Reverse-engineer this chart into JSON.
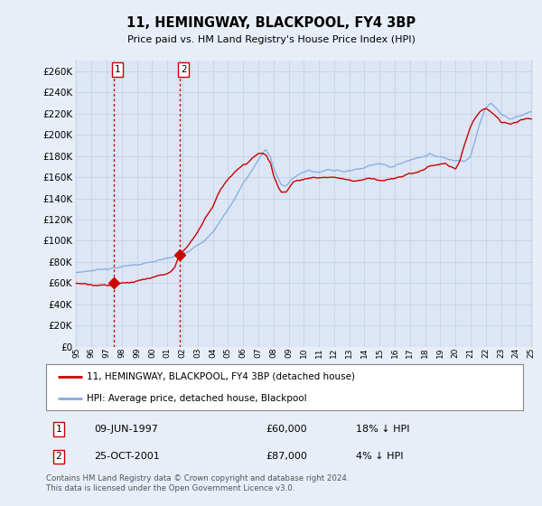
{
  "title": "11, HEMINGWAY, BLACKPOOL, FY4 3BP",
  "subtitle": "Price paid vs. HM Land Registry's House Price Index (HPI)",
  "background_color": "#e8eef7",
  "plot_bg_color": "#dce6f5",
  "grid_color": "#c8d4e8",
  "ylim": [
    0,
    270000
  ],
  "yticks": [
    0,
    20000,
    40000,
    60000,
    80000,
    100000,
    120000,
    140000,
    160000,
    180000,
    200000,
    220000,
    240000,
    260000
  ],
  "sale1_price": 60000,
  "sale1_x": 1997.45,
  "sale2_price": 87000,
  "sale2_x": 2001.8,
  "sale1_label": "1",
  "sale2_label": "2",
  "sale_color": "#cc0000",
  "legend_line1_color": "#cc0000",
  "legend_line2_color": "#88aadd",
  "legend_text1": "11, HEMINGWAY, BLACKPOOL, FY4 3BP (detached house)",
  "legend_text2": "HPI: Average price, detached house, Blackpool",
  "table_row1": [
    "1",
    "09-JUN-1997",
    "£60,000",
    "18% ↓ HPI"
  ],
  "table_row2": [
    "2",
    "25-OCT-2001",
    "£87,000",
    "4% ↓ HPI"
  ],
  "footer": "Contains HM Land Registry data © Crown copyright and database right 2024.\nThis data is licensed under the Open Government Licence v3.0.",
  "xtick_years": [
    1995,
    1996,
    1997,
    1998,
    1999,
    2000,
    2001,
    2002,
    2003,
    2004,
    2005,
    2006,
    2007,
    2008,
    2009,
    2010,
    2011,
    2012,
    2013,
    2014,
    2015,
    2016,
    2017,
    2018,
    2019,
    2020,
    2021,
    2022,
    2023,
    2024,
    2025
  ],
  "hpi_key_x": [
    1995.0,
    1995.5,
    1996.0,
    1996.5,
    1997.0,
    1997.5,
    1998.0,
    1998.5,
    1999.0,
    1999.5,
    2000.0,
    2000.5,
    2001.0,
    2001.5,
    2002.0,
    2002.5,
    2003.0,
    2003.5,
    2004.0,
    2004.5,
    2005.0,
    2005.5,
    2006.0,
    2006.5,
    2007.0,
    2007.3,
    2007.5,
    2007.8,
    2008.0,
    2008.3,
    2008.5,
    2008.8,
    2009.0,
    2009.3,
    2009.6,
    2010.0,
    2010.3,
    2010.6,
    2011.0,
    2011.3,
    2011.6,
    2012.0,
    2012.3,
    2012.6,
    2013.0,
    2013.3,
    2013.6,
    2014.0,
    2014.3,
    2014.6,
    2015.0,
    2015.3,
    2015.6,
    2016.0,
    2016.3,
    2016.6,
    2017.0,
    2017.3,
    2017.6,
    2018.0,
    2018.3,
    2018.5,
    2018.8,
    2019.0,
    2019.3,
    2019.6,
    2020.0,
    2020.3,
    2020.6,
    2021.0,
    2021.3,
    2021.6,
    2022.0,
    2022.3,
    2022.5,
    2022.8,
    2023.0,
    2023.3,
    2023.6,
    2024.0,
    2024.3,
    2024.6,
    2025.0
  ],
  "hpi_key_y": [
    70000,
    71000,
    72000,
    73000,
    74000,
    75000,
    76000,
    77000,
    78000,
    79000,
    80000,
    81000,
    82000,
    83500,
    85000,
    88000,
    93000,
    99000,
    108000,
    118000,
    128000,
    140000,
    153000,
    163000,
    175000,
    182000,
    185000,
    178000,
    168000,
    158000,
    152000,
    150000,
    153000,
    157000,
    160000,
    163000,
    165000,
    163000,
    162000,
    163000,
    164000,
    164000,
    165000,
    163000,
    163000,
    164000,
    165000,
    166000,
    168000,
    169000,
    170000,
    170000,
    168000,
    168000,
    170000,
    172000,
    174000,
    176000,
    177000,
    178000,
    182000,
    180000,
    179000,
    178000,
    177000,
    175000,
    174000,
    175000,
    175000,
    180000,
    195000,
    210000,
    225000,
    230000,
    228000,
    224000,
    220000,
    218000,
    215000,
    217000,
    218000,
    220000,
    222000
  ],
  "pp_key_x": [
    1995.0,
    1995.5,
    1996.0,
    1996.5,
    1997.0,
    1997.45,
    1997.7,
    1998.0,
    1998.5,
    1999.0,
    1999.5,
    2000.0,
    2000.5,
    2001.0,
    2001.5,
    2001.8,
    2002.0,
    2002.3,
    2002.6,
    2003.0,
    2003.3,
    2003.6,
    2004.0,
    2004.3,
    2004.6,
    2005.0,
    2005.3,
    2005.6,
    2006.0,
    2006.3,
    2006.6,
    2007.0,
    2007.3,
    2007.5,
    2007.8,
    2008.0,
    2008.3,
    2008.5,
    2008.8,
    2009.0,
    2009.3,
    2009.6,
    2010.0,
    2010.3,
    2010.6,
    2011.0,
    2011.3,
    2011.6,
    2012.0,
    2012.3,
    2012.6,
    2013.0,
    2013.3,
    2013.6,
    2014.0,
    2014.3,
    2014.6,
    2015.0,
    2015.3,
    2015.6,
    2016.0,
    2016.3,
    2016.6,
    2017.0,
    2017.3,
    2017.6,
    2018.0,
    2018.3,
    2018.6,
    2019.0,
    2019.3,
    2019.6,
    2020.0,
    2020.3,
    2020.6,
    2021.0,
    2021.3,
    2021.6,
    2022.0,
    2022.3,
    2022.5,
    2022.8,
    2023.0,
    2023.3,
    2023.6,
    2024.0,
    2024.3,
    2024.6,
    2025.0
  ],
  "pp_key_y": [
    60000,
    60000,
    60000,
    60000,
    60000,
    60000,
    62000,
    63000,
    64000,
    65000,
    66000,
    67000,
    68000,
    69000,
    76000,
    87000,
    90000,
    94000,
    100000,
    108000,
    116000,
    124000,
    132000,
    142000,
    150000,
    158000,
    163000,
    168000,
    173000,
    175000,
    180000,
    185000,
    185000,
    183000,
    175000,
    163000,
    153000,
    148000,
    148000,
    152000,
    158000,
    160000,
    161000,
    162000,
    163000,
    162000,
    163000,
    163000,
    163000,
    163000,
    162000,
    161000,
    160000,
    161000,
    162000,
    163000,
    163000,
    162000,
    162000,
    163000,
    163000,
    164000,
    165000,
    167000,
    168000,
    170000,
    172000,
    175000,
    176000,
    177000,
    178000,
    175000,
    172000,
    180000,
    195000,
    212000,
    220000,
    225000,
    228000,
    225000,
    222000,
    218000,
    213000,
    213000,
    212000,
    213000,
    214000,
    215000,
    215000
  ]
}
